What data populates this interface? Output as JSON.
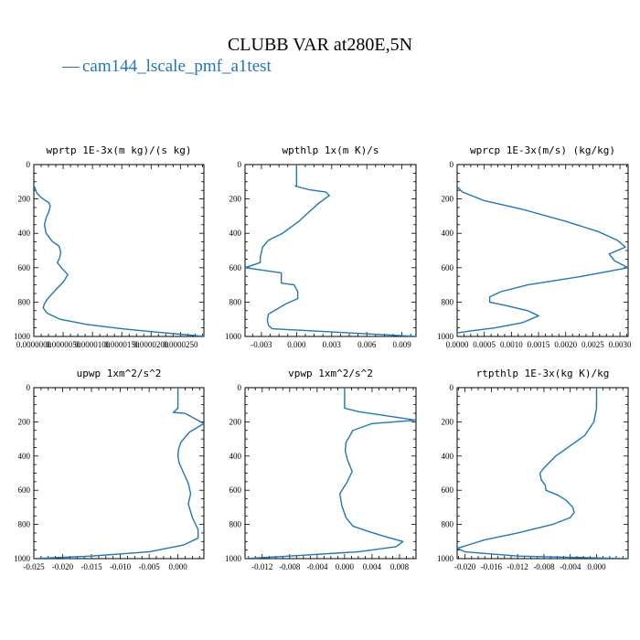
{
  "figure": {
    "title": "CLUBB VAR at280E,5N",
    "legend": [
      {
        "name": "cam144_lscale_pmf_a1test",
        "color": "#1f77b4",
        "marker": "—"
      }
    ]
  },
  "chart_data": [
    {
      "type": "line",
      "title": "wprtp  1E-3x(m kg)/(s kg)",
      "xlim": [
        0,
        2.9e-05
      ],
      "ylim": [
        1000,
        0
      ],
      "xticks": [
        0,
        5e-06,
        1e-05,
        1.5e-05,
        2e-05,
        2.5e-05
      ],
      "xtick_labels": [
        "0.0000000",
        "0.0000050",
        "0.0000100",
        "0.0000150",
        "0.0000200",
        "0.0000250"
      ],
      "yticks": [
        0,
        200,
        400,
        600,
        800,
        1000
      ],
      "ytick_labels": [
        "0",
        "200",
        "400",
        "600",
        "800",
        "1000"
      ],
      "series": [
        {
          "color": "#1f77b4",
          "x": [
            0,
            5e-07,
            1.2e-06,
            1.8e-06,
            2.5e-06,
            2.8e-06,
            2.6e-06,
            2.1e-06,
            1.8e-06,
            2.1e-06,
            3.1e-06,
            4.3e-06,
            4.6e-06,
            4.4e-06,
            4e-06,
            4.7e-06,
            5.8e-06,
            5.1e-06,
            3.7e-06,
            2.5e-06,
            1.8e-06,
            1.6e-06,
            2.3e-06,
            4.5e-06,
            9e-06,
            1.5e-05,
            2.1e-05,
            2.6e-05,
            2.9e-05
          ],
          "y": [
            120,
            165,
            190,
            205,
            220,
            240,
            270,
            310,
            350,
            400,
            445,
            475,
            510,
            545,
            570,
            600,
            640,
            680,
            730,
            775,
            810,
            835,
            865,
            900,
            930,
            955,
            975,
            990,
            1000
          ]
        }
      ]
    },
    {
      "type": "line",
      "title": "wpthlp  1x(m K)/s",
      "xlim": [
        -0.0044,
        0.0102
      ],
      "ylim": [
        1000,
        0
      ],
      "xticks": [
        -0.003,
        0,
        0.003,
        0.006,
        0.009
      ],
      "xtick_labels": [
        "-0.003",
        "0.000",
        "0.003",
        "0.006",
        "0.009"
      ],
      "yticks": [
        0,
        200,
        400,
        600,
        800,
        1000
      ],
      "ytick_labels": [
        "0",
        "200",
        "400",
        "600",
        "800",
        "1000"
      ],
      "series": [
        {
          "color": "#1f77b4",
          "x": [
            0,
            0,
            -0.0001,
            0.001,
            0.0025,
            0.0028,
            0.0018,
            0.0002,
            -0.0012,
            -0.0024,
            -0.0029,
            -0.0031,
            -0.0031,
            -0.0044,
            -0.0013,
            -0.0013,
            -0.0002,
            0.0001,
            0.0001,
            -0.0009,
            -0.0024,
            -0.0025,
            -0.0024,
            -0.0021,
            0.0102
          ],
          "y": [
            0,
            120,
            125,
            145,
            160,
            180,
            230,
            330,
            400,
            440,
            480,
            540,
            570,
            600,
            630,
            690,
            700,
            740,
            780,
            810,
            870,
            905,
            935,
            955,
            1000
          ]
        }
      ]
    },
    {
      "type": "line",
      "title": "wprcp  1E-3x(m/s) (kg/kg)",
      "xlim": [
        0,
        0.00315
      ],
      "ylim": [
        1000,
        0
      ],
      "xticks": [
        0,
        0.0005,
        0.001,
        0.0015,
        0.002,
        0.0025,
        0.003
      ],
      "xtick_labels": [
        "0.0000",
        "0.0005",
        "0.0010",
        "0.0015",
        "0.0020",
        "0.0025",
        "0.0030"
      ],
      "yticks": [
        0,
        200,
        400,
        600,
        800,
        1000
      ],
      "ytick_labels": [
        "0",
        "200",
        "400",
        "600",
        "800",
        "1000"
      ],
      "series": [
        {
          "color": "#1f77b4",
          "x": [
            0,
            0.0001,
            0.0005,
            0.0012,
            0.002,
            0.0026,
            0.00295,
            0.0031,
            0.0028,
            0.0029,
            0.00315,
            0.0023,
            0.0013,
            0.0008,
            0.0006,
            0.0006,
            0.0009,
            0.0013,
            0.0015,
            0.0012,
            0.0007,
            0.0002,
            0
          ],
          "y": [
            130,
            160,
            210,
            260,
            330,
            390,
            440,
            480,
            520,
            560,
            600,
            650,
            700,
            740,
            770,
            800,
            820,
            850,
            880,
            920,
            950,
            970,
            980
          ]
        }
      ]
    },
    {
      "type": "line",
      "title": "upwp  1xm^2/s^2",
      "xlim": [
        -0.025,
        0.0045
      ],
      "ylim": [
        1000,
        0
      ],
      "xticks": [
        -0.025,
        -0.02,
        -0.015,
        -0.01,
        -0.005,
        0
      ],
      "xtick_labels": [
        "-0.025",
        "-0.020",
        "-0.015",
        "-0.010",
        "-0.005",
        "0.000"
      ],
      "yticks": [
        0,
        200,
        400,
        600,
        800,
        1000
      ],
      "ytick_labels": [
        "0",
        "200",
        "400",
        "600",
        "800",
        "1000"
      ],
      "series": [
        {
          "color": "#1f77b4",
          "x": [
            0,
            0,
            -0.0008,
            0.0012,
            0.0045,
            0.002,
            0.0005,
            0.0001,
            0,
            0.0002,
            0.001,
            0.0018,
            0.0022,
            0.0018,
            0.0025,
            0.0035,
            0.0035,
            0.001,
            -0.005,
            -0.015,
            -0.025
          ],
          "y": [
            0,
            120,
            145,
            150,
            210,
            260,
            320,
            360,
            400,
            440,
            500,
            560,
            620,
            680,
            760,
            830,
            880,
            920,
            960,
            985,
            1000
          ]
        }
      ]
    },
    {
      "type": "line",
      "title": "vpwp  1xm^2/s^2",
      "xlim": [
        -0.0145,
        0.0104
      ],
      "ylim": [
        1000,
        0
      ],
      "xticks": [
        -0.012,
        -0.008,
        -0.004,
        0,
        0.004,
        0.008
      ],
      "xtick_labels": [
        "-0.012",
        "-0.008",
        "-0.004",
        "0.000",
        "0.004",
        "0.008"
      ],
      "yticks": [
        0,
        200,
        400,
        600,
        800,
        1000
      ],
      "ytick_labels": [
        "0",
        "200",
        "400",
        "600",
        "800",
        "1000"
      ],
      "series": [
        {
          "color": "#1f77b4",
          "x": [
            0,
            0,
            0.002,
            0.0104,
            0.004,
            0.0012,
            0.0008,
            0.0002,
            0.0001,
            0.0004,
            0.0011,
            0.0004,
            -0.0007,
            -0.0004,
            0.0002,
            0.0012,
            0.0034,
            0.0058,
            0.0085,
            0.0075,
            0.002,
            -0.008,
            -0.0145
          ],
          "y": [
            0,
            120,
            140,
            190,
            210,
            250,
            280,
            320,
            370,
            420,
            490,
            550,
            620,
            690,
            760,
            810,
            840,
            870,
            900,
            930,
            960,
            985,
            1000
          ]
        }
      ]
    },
    {
      "type": "line",
      "title": "rtpthlp  1E-3x(kg K)/kg",
      "xlim": [
        -0.0212,
        0.0048
      ],
      "ylim": [
        1000,
        0
      ],
      "xticks": [
        -0.02,
        -0.016,
        -0.012,
        -0.008,
        -0.004,
        0
      ],
      "xtick_labels": [
        "-0.020",
        "-0.016",
        "-0.012",
        "-0.008",
        "-0.004",
        "0.000"
      ],
      "yticks": [
        0,
        200,
        400,
        600,
        800,
        1000
      ],
      "ytick_labels": [
        "0",
        "200",
        "400",
        "600",
        "800",
        "1000"
      ],
      "series": [
        {
          "color": "#1f77b4",
          "x": [
            0,
            0,
            -0.0004,
            -0.0018,
            -0.004,
            -0.0062,
            -0.008,
            -0.0086,
            -0.0084,
            -0.0078,
            -0.0077,
            -0.0058,
            -0.0046,
            -0.0036,
            -0.0034,
            -0.004,
            -0.0067,
            -0.012,
            -0.017,
            -0.0212,
            -0.02,
            -0.012,
            0.0048
          ],
          "y": [
            0,
            120,
            200,
            280,
            340,
            400,
            470,
            500,
            540,
            570,
            600,
            630,
            660,
            700,
            730,
            760,
            800,
            850,
            890,
            940,
            960,
            985,
            1000
          ]
        }
      ]
    }
  ]
}
